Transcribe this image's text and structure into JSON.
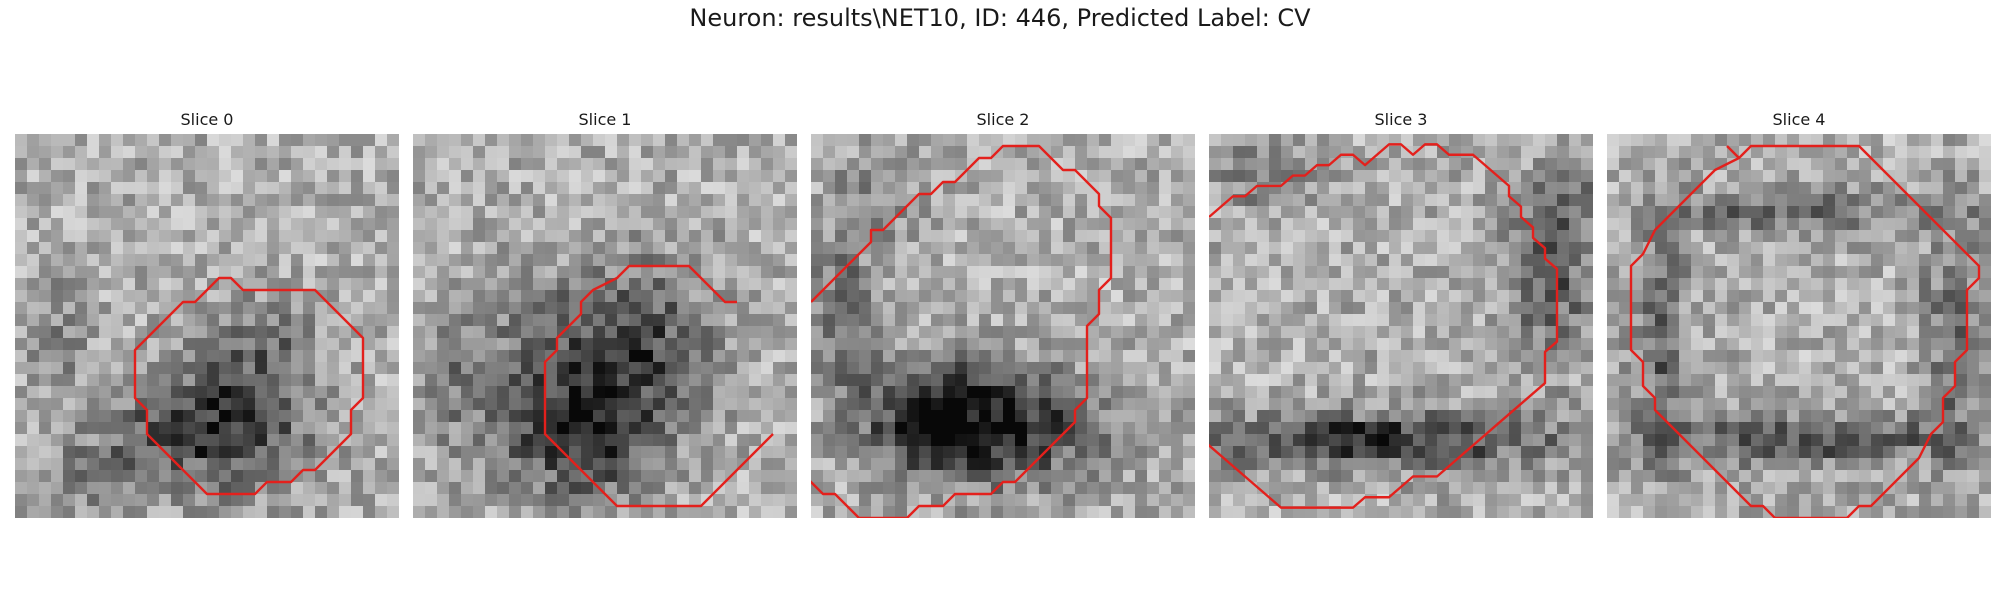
{
  "figure": {
    "title": "Neuron: results\\NET10, ID: 446, Predicted Label: CV"
  },
  "slices": [
    {
      "label": "Slice 0"
    },
    {
      "label": "Slice 1"
    },
    {
      "label": "Slice 2"
    },
    {
      "label": "Slice 3"
    },
    {
      "label": "Slice 4"
    }
  ],
  "colors": {
    "contour": "#e3201c",
    "background": "#ffffff"
  }
}
